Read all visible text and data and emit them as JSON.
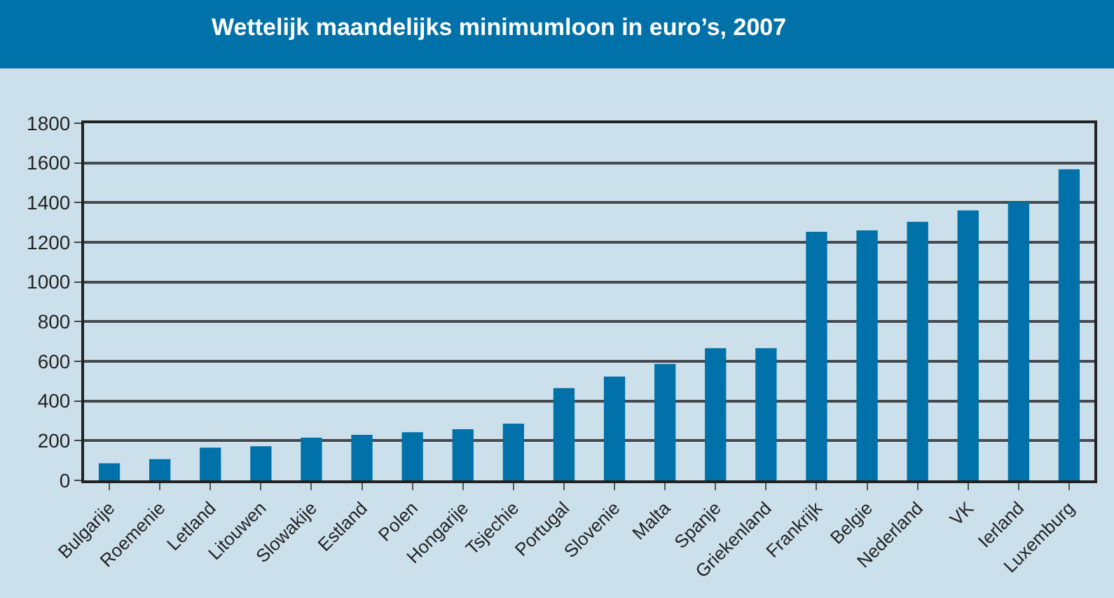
{
  "chart_data": {
    "type": "bar",
    "title": "Wettelijk maandelijks minimumloon in euro’s, 2007",
    "categories": [
      "Bulgarije",
      "Roemenie",
      "Letland",
      "Litouwen",
      "Slowakije",
      "Estland",
      "Polen",
      "Hongarije",
      "Tsjechie",
      "Portugal",
      "Slovenie",
      "Malta",
      "Spanje",
      "Griekenland",
      "Frankrijk",
      "Belgie",
      "Nederland",
      "VK",
      "Ierland",
      "Luxemburg"
    ],
    "values": [
      86,
      107,
      165,
      172,
      215,
      229,
      243,
      258,
      286,
      465,
      523,
      587,
      666,
      666,
      1253,
      1260,
      1303,
      1361,
      1403,
      1568
    ],
    "color": "#0071a9",
    "ylim": [
      0,
      1800
    ],
    "yticks": [
      0,
      200,
      400,
      600,
      800,
      1000,
      1200,
      1400,
      1600,
      1800
    ],
    "grid": "y"
  }
}
